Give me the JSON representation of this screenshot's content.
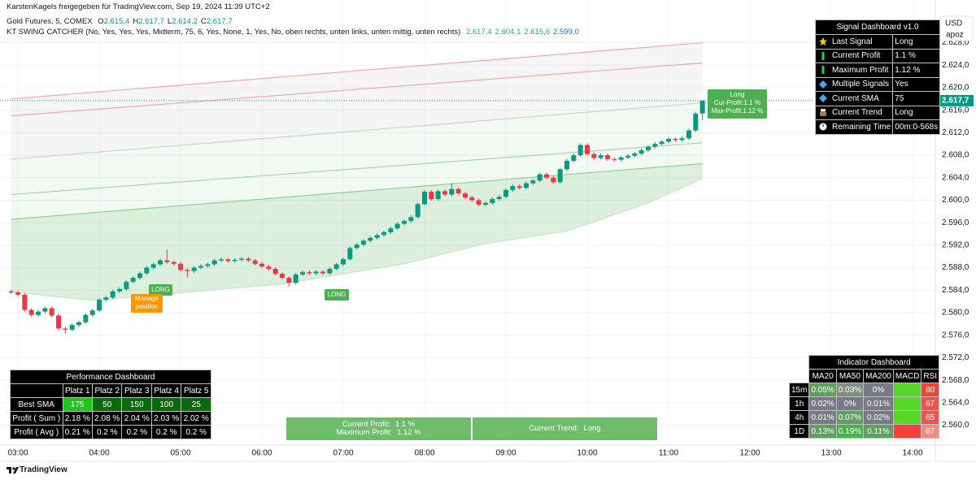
{
  "header": {
    "shared_by": "KarstenKagels freigegeben für TradingView.com, Sep 19, 2024 11:39 UTC+2",
    "symbol": "Gold Futures, 5, COMEX",
    "ohlc": [
      {
        "key": "O",
        "value": "2.615,4"
      },
      {
        "key": "H",
        "value": "2.617,7"
      },
      {
        "key": "L",
        "value": "2.614,2"
      },
      {
        "key": "C",
        "value": "2.617,7"
      }
    ],
    "indicator": "KT SWING CATCHER (No, Yes, Yes, Yes, Midterm, 75, 6, Yes, None, 1, Yes, No, oben rechts, unten links, unten mittig, unten rechts)",
    "indicator_values": [
      {
        "text": "2.617,4",
        "color": "#26a69a"
      },
      {
        "text": "2.604,1",
        "color": "#26a69a"
      },
      {
        "text": "2.615,6",
        "color": "#26a69a"
      },
      {
        "text": "2.599,0",
        "color": "#2962ff"
      }
    ]
  },
  "chart_data": {
    "type": "candlestick",
    "up_color": "#089981",
    "down_color": "#f23645",
    "grid": true,
    "currency": "USD",
    "scale_label": "apoz",
    "price_label": "2.617,7",
    "xlim": [
      166.8,
      856.8
    ],
    "ylim": [
      2556.9,
      2632.7
    ],
    "xticks": [
      {
        "value": 180,
        "label": "03:00"
      },
      {
        "value": 240,
        "label": "04:00"
      },
      {
        "value": 300,
        "label": "05:00"
      },
      {
        "value": 360,
        "label": "06:00"
      },
      {
        "value": 420,
        "label": "07:00"
      },
      {
        "value": 480,
        "label": "08:00"
      },
      {
        "value": 540,
        "label": "09:00"
      },
      {
        "value": 600,
        "label": "10:00"
      },
      {
        "value": 660,
        "label": "11:00"
      },
      {
        "value": 720,
        "label": "12:00"
      },
      {
        "value": 780,
        "label": "13:00"
      },
      {
        "value": 840,
        "label": "14:00"
      }
    ],
    "yticks": [
      {
        "value": 2560,
        "label": "2.560,0"
      },
      {
        "value": 2564,
        "label": "2.564,0"
      },
      {
        "value": 2568,
        "label": "2.568,0"
      },
      {
        "value": 2572,
        "label": "2.572,0"
      },
      {
        "value": 2576,
        "label": "2.576,0"
      },
      {
        "value": 2580,
        "label": "2.580,0"
      },
      {
        "value": 2584,
        "label": "2.584,0"
      },
      {
        "value": 2588,
        "label": "2.588,0"
      },
      {
        "value": 2592,
        "label": "2.592,0"
      },
      {
        "value": 2596,
        "label": "2.596,0"
      },
      {
        "value": 2600,
        "label": "2.600,0"
      },
      {
        "value": 2604,
        "label": "2.604,0"
      },
      {
        "value": 2608,
        "label": "2.608,0"
      },
      {
        "value": 2612,
        "label": "2.612,0"
      },
      {
        "value": 2616,
        "label": "2.616,0"
      },
      {
        "value": 2620,
        "label": "2.620,0"
      },
      {
        "value": 2624,
        "label": "2.624,0"
      },
      {
        "value": 2628,
        "label": "2.628,0"
      }
    ],
    "x": [
      175,
      180,
      185,
      190,
      195,
      200,
      205,
      210,
      215,
      220,
      225,
      230,
      235,
      240,
      245,
      250,
      255,
      260,
      265,
      270,
      275,
      280,
      285,
      290,
      295,
      300,
      305,
      310,
      315,
      320,
      325,
      330,
      335,
      340,
      345,
      350,
      355,
      360,
      365,
      370,
      375,
      380,
      385,
      390,
      395,
      400,
      405,
      410,
      415,
      420,
      425,
      430,
      435,
      440,
      445,
      450,
      455,
      460,
      465,
      470,
      475,
      480,
      485,
      490,
      495,
      500,
      505,
      510,
      515,
      520,
      525,
      530,
      535,
      540,
      545,
      550,
      555,
      560,
      565,
      570,
      575,
      580,
      585,
      590,
      595,
      600,
      605,
      610,
      615,
      620,
      625,
      630,
      635,
      640,
      645,
      650,
      655,
      660,
      665,
      670,
      675,
      680,
      685
    ],
    "open": [
      2583.8,
      2583.6,
      2583.2,
      2580.5,
      2579.6,
      2580.2,
      2580.8,
      2579.5,
      2577.2,
      2577.0,
      2577.8,
      2578.3,
      2579.6,
      2580.4,
      2582.3,
      2582.7,
      2583.8,
      2584.2,
      2585.5,
      2586.2,
      2587.0,
      2588.0,
      2588.6,
      2589.3,
      2589.0,
      2588.7,
      2587.6,
      2587.4,
      2588.0,
      2588.3,
      2588.6,
      2589.3,
      2589.5,
      2589.2,
      2589.4,
      2589.6,
      2589.3,
      2588.7,
      2588.2,
      2587.8,
      2586.9,
      2586.2,
      2585.3,
      2586.8,
      2587.2,
      2587.0,
      2587.3,
      2587.0,
      2587.8,
      2588.6,
      2589.5,
      2591.5,
      2592.1,
      2592.8,
      2593.3,
      2593.8,
      2594.3,
      2595.0,
      2595.8,
      2596.3,
      2597.0,
      2599.3,
      2601.5,
      2600.2,
      2601.6,
      2601.0,
      2602.0,
      2601.2,
      2600.5,
      2600.0,
      2599.2,
      2599.5,
      2600.2,
      2600.6,
      2601.8,
      2602.5,
      2602.2,
      2603.0,
      2603.5,
      2604.6,
      2604.0,
      2603.2,
      2605.5,
      2607.0,
      2608.0,
      2609.8,
      2608.2,
      2607.5,
      2608.0,
      2607.3,
      2607.2,
      2607.6,
      2607.9,
      2608.3,
      2608.9,
      2609.5,
      2610.0,
      2610.4,
      2610.9,
      2610.7,
      2611.0,
      2612.4,
      2615.4
    ],
    "high": [
      2584.1,
      2583.9,
      2583.5,
      2580.8,
      2580.5,
      2581.1,
      2581.1,
      2579.8,
      2577.5,
      2578.1,
      2578.6,
      2579.9,
      2580.7,
      2582.6,
      2583.0,
      2584.1,
      2584.5,
      2585.8,
      2586.5,
      2587.3,
      2588.3,
      2588.9,
      2589.6,
      2591.2,
      2589.3,
      2589.0,
      2587.9,
      2588.3,
      2588.6,
      2588.9,
      2589.6,
      2589.8,
      2589.8,
      2589.7,
      2589.9,
      2589.9,
      2589.6,
      2589.0,
      2588.5,
      2588.1,
      2587.2,
      2586.5,
      2587.1,
      2587.5,
      2587.5,
      2587.6,
      2587.6,
      2588.1,
      2588.9,
      2589.8,
      2591.8,
      2592.4,
      2593.1,
      2593.6,
      2594.1,
      2594.6,
      2595.3,
      2596.1,
      2596.6,
      2597.3,
      2599.6,
      2601.8,
      2601.8,
      2601.9,
      2601.9,
      2603.0,
      2602.3,
      2601.5,
      2600.8,
      2600.3,
      2599.8,
      2600.5,
      2600.9,
      2602.1,
      2602.8,
      2602.8,
      2603.3,
      2603.8,
      2604.9,
      2604.9,
      2604.3,
      2605.8,
      2607.3,
      2608.3,
      2610.1,
      2610.1,
      2608.5,
      2608.3,
      2608.3,
      2607.6,
      2607.9,
      2608.2,
      2608.6,
      2609.2,
      2609.8,
      2610.3,
      2610.7,
      2611.2,
      2611.2,
      2611.3,
      2612.7,
      2615.7,
      2617.7
    ],
    "low": [
      2583.3,
      2582.9,
      2580.2,
      2579.3,
      2579.3,
      2579.9,
      2579.2,
      2576.9,
      2576.3,
      2576.7,
      2577.5,
      2578.0,
      2579.3,
      2580.1,
      2582.0,
      2582.4,
      2583.5,
      2583.9,
      2585.2,
      2585.9,
      2586.7,
      2587.7,
      2588.3,
      2588.7,
      2588.4,
      2587.3,
      2586.3,
      2587.1,
      2587.7,
      2588.0,
      2588.3,
      2589.0,
      2588.9,
      2588.9,
      2589.1,
      2589.0,
      2588.4,
      2587.9,
      2587.5,
      2586.6,
      2585.9,
      2584.6,
      2585.0,
      2586.5,
      2586.7,
      2586.7,
      2586.7,
      2586.7,
      2587.5,
      2588.3,
      2589.2,
      2591.2,
      2591.8,
      2592.5,
      2593.0,
      2593.5,
      2594.0,
      2594.7,
      2595.5,
      2596.0,
      2596.7,
      2599.0,
      2599.9,
      2599.9,
      2600.7,
      2600.7,
      2600.9,
      2600.2,
      2599.7,
      2598.9,
      2598.9,
      2599.2,
      2599.9,
      2600.3,
      2601.5,
      2601.9,
      2601.9,
      2602.7,
      2603.2,
      2603.7,
      2602.9,
      2602.9,
      2605.2,
      2606.7,
      2607.7,
      2607.9,
      2607.2,
      2607.2,
      2607.0,
      2606.9,
      2606.9,
      2607.3,
      2607.6,
      2608.0,
      2608.6,
      2609.2,
      2609.7,
      2610.1,
      2610.4,
      2610.4,
      2610.7,
      2612.1,
      2614.2
    ],
    "close": [
      2583.6,
      2583.2,
      2580.5,
      2579.6,
      2580.2,
      2580.8,
      2579.5,
      2577.2,
      2577.0,
      2577.8,
      2578.3,
      2579.6,
      2580.4,
      2582.3,
      2582.7,
      2583.8,
      2584.2,
      2585.5,
      2586.2,
      2587.0,
      2588.0,
      2588.6,
      2589.3,
      2589.0,
      2588.7,
      2587.6,
      2587.4,
      2588.0,
      2588.3,
      2588.6,
      2589.3,
      2589.5,
      2589.2,
      2589.4,
      2589.6,
      2589.3,
      2588.7,
      2588.2,
      2587.8,
      2586.9,
      2586.2,
      2585.3,
      2586.8,
      2587.2,
      2587.0,
      2587.3,
      2587.0,
      2587.8,
      2588.6,
      2589.5,
      2591.5,
      2592.1,
      2592.8,
      2593.3,
      2593.8,
      2594.3,
      2595.0,
      2595.8,
      2596.3,
      2597.0,
      2599.3,
      2601.5,
      2600.2,
      2601.6,
      2601.0,
      2602.0,
      2601.2,
      2600.5,
      2600.0,
      2599.2,
      2599.5,
      2600.2,
      2600.6,
      2601.8,
      2602.5,
      2602.2,
      2603.0,
      2603.5,
      2604.6,
      2604.0,
      2603.2,
      2605.5,
      2607.0,
      2608.0,
      2609.8,
      2608.2,
      2607.5,
      2608.0,
      2607.3,
      2607.2,
      2607.6,
      2607.9,
      2608.3,
      2608.9,
      2609.5,
      2610.0,
      2610.4,
      2610.9,
      2610.7,
      2611.0,
      2612.4,
      2615.4,
      2617.7
    ],
    "lines": [
      {
        "color": "#f5a8a8",
        "x": [
          175,
          685
        ],
        "values": [
          2618.0,
          2628.0
        ]
      },
      {
        "color": "#f5a8a8",
        "x": [
          175,
          685
        ],
        "values": [
          2615.0,
          2624.4
        ]
      },
      {
        "color": "#cfcfcf",
        "x": [
          175,
          685
        ],
        "values": [
          2607.3,
          2617.3
        ]
      },
      {
        "color": "#a5d6a7",
        "x": [
          175,
          685
        ],
        "values": [
          2601.0,
          2610.2
        ]
      },
      {
        "color": "#8fcf91",
        "x": [
          175,
          685
        ],
        "values": [
          2596.6,
          2606.5
        ]
      },
      {
        "color": "#c8e6c9",
        "x": [
          175,
          235,
          275,
          375,
          465,
          525,
          585,
          645,
          685
        ],
        "values": [
          2583.7,
          2582.2,
          2583.0,
          2585.1,
          2588.7,
          2592.3,
          2594.5,
          2599.5,
          2603.9
        ]
      }
    ],
    "annotations": {
      "long_1": "LONG",
      "manage": "Manage position",
      "long_2": "LONG",
      "signal": [
        "Long",
        "Cur-Profit:1.1 %",
        "Max-Profit:1.12 %"
      ]
    }
  },
  "signal_dashboard": {
    "title": "Signal Dashboard v1.0",
    "rows": [
      {
        "label": "Last Signal",
        "value": "Long"
      },
      {
        "label": "Current Profit",
        "value": "1.1 %"
      },
      {
        "label": "Maximum Profit",
        "value": "1.12 %"
      },
      {
        "label": "Multiple Signals",
        "value": "Yes"
      },
      {
        "label": "Current SMA",
        "value": 75
      },
      {
        "label": "Current Trend",
        "value": "Long"
      },
      {
        "label": "Remaining Time",
        "value": "00m:0-568s"
      }
    ]
  },
  "performance_dashboard": {
    "title": "Performance Dashboard",
    "columns": [
      "Platz 1",
      "Platz 2",
      "Platz 3",
      "Platz 4",
      "Platz 5"
    ],
    "rows": [
      {
        "label": "Best SMA",
        "cells": [
          175,
          50,
          150,
          100,
          25
        ],
        "colors": [
          "#1fc41f",
          "#0b6a0b",
          "#0b6a0b",
          "#0b6a0b",
          "#0b6a0b"
        ]
      },
      {
        "label": "Profit ( Sum )",
        "cells": [
          "2.18 %",
          "2.08 %",
          "2.04 %",
          "2.03 %",
          "2.02 %"
        ]
      },
      {
        "label": "Profit ( Avg )",
        "cells": [
          "0.21 %",
          "0.2 %",
          "0.2 %",
          "0.2 %",
          "0.2 %"
        ]
      }
    ]
  },
  "indicator_dashboard": {
    "title": "Indicator Dashboard",
    "columns": [
      "MA20",
      "MA50",
      "MA200",
      "MACD",
      "RSI"
    ],
    "rows": [
      {
        "label": "15m",
        "cells": [
          "0.05%",
          "0.03%",
          "0%",
          null,
          80
        ],
        "colors": [
          "#5f9f61",
          "#7f8f80",
          "#787b86",
          "#59d62a",
          "#f44336"
        ]
      },
      {
        "label": "1h",
        "cells": [
          "0.02%",
          "0%",
          "0.01%",
          null,
          67
        ],
        "colors": [
          "#787b86",
          "#787b86",
          "#787b86",
          "#59d62a",
          "#ef5350"
        ]
      },
      {
        "label": "4h",
        "cells": [
          "0.01%",
          "0.07%",
          "0.02%",
          null,
          65
        ],
        "colors": [
          "#787b86",
          "#5f9f61",
          "#787b86",
          "#59d62a",
          "#ef5350"
        ]
      },
      {
        "label": "1D",
        "cells": [
          "0.13%",
          "0.19%",
          "0.11%",
          null,
          67
        ],
        "colors": [
          "#5f9f61",
          "#4caf50",
          "#5f9f61",
          "#f44336",
          "#f28b82"
        ]
      }
    ]
  },
  "status_boxes": {
    "current_profit_label": "Current Profit:",
    "current_profit": "1.1 %",
    "maximum_profit_label": "Maximum Profit:",
    "maximum_profit": "1.12 %",
    "trend_label": "Current Trend:",
    "trend": "Long"
  },
  "footer": "TradingView"
}
